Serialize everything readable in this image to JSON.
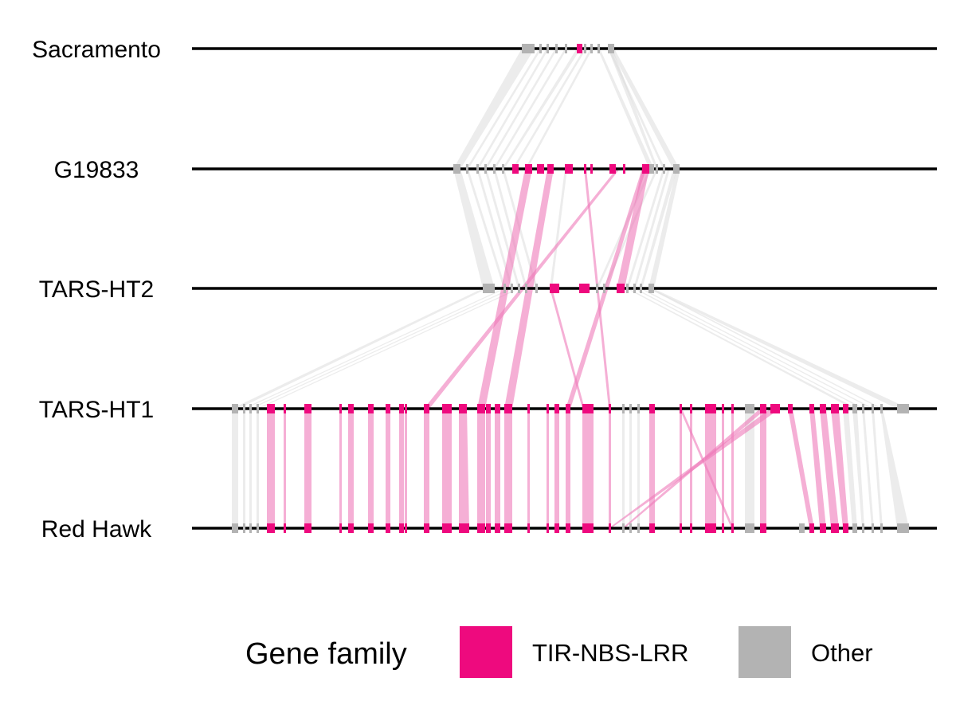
{
  "genomes": [
    {
      "id": "sac",
      "label": "Sacramento"
    },
    {
      "id": "g19",
      "label": "G19833"
    },
    {
      "id": "ht2",
      "label": "TARS-HT2"
    },
    {
      "id": "ht1",
      "label": "TARS-HT1"
    },
    {
      "id": "rh",
      "label": "Red Hawk"
    }
  ],
  "legend": {
    "title": "Gene family",
    "items": [
      {
        "label": "TIR-NBS-LRR",
        "color": "#ee0a7e"
      },
      {
        "label": "Other",
        "color": "#b3b3b3"
      }
    ]
  },
  "colors": {
    "tir_gene": "#ee0a7e",
    "other_gene": "#b3b3b3",
    "tir_link": "#ee7ab9",
    "other_link": "#dcdcdc",
    "chromosome_line": "#000000"
  }
}
